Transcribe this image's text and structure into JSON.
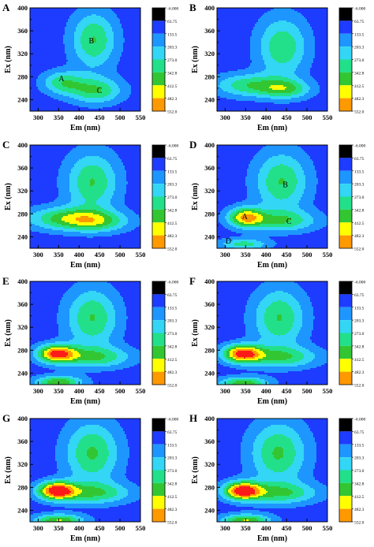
{
  "chart_data": {
    "type": "heatmap",
    "subtype": "filled-contour",
    "xlabel": "Em (nm)",
    "ylabel": "Ex (nm)",
    "xlim": [
      280,
      550
    ],
    "ylim": [
      220,
      400
    ],
    "xticks": [
      "300",
      "350",
      "400",
      "450",
      "500",
      "550"
    ],
    "yticks": [
      "240",
      "280",
      "320",
      "360",
      "400"
    ],
    "colorbar": {
      "levels": [
        "-6.000",
        "63.75",
        "133.5",
        "203.3",
        "273.0",
        "342.8",
        "412.5",
        "482.3",
        "552.0"
      ],
      "colors": [
        "#000000",
        "#1e3cff",
        "#1e96ff",
        "#33d6f5",
        "#22e08a",
        "#33c633",
        "#ffff00",
        "#ff9900",
        "#ff1a1a"
      ]
    },
    "panels": [
      {
        "letter": "A",
        "peaks": [
          {
            "em": 436,
            "ex": 344,
            "height": 3.6,
            "sx": 38,
            "sy": 34
          },
          {
            "em": 440,
            "ex": 256,
            "height": 3.6,
            "sx": 45,
            "sy": 16
          },
          {
            "em": 360,
            "ex": 270,
            "height": 3.1,
            "sx": 35,
            "sy": 14
          }
        ],
        "annotations": [
          {
            "text": "A",
            "em": 357,
            "ex": 278
          },
          {
            "text": "B",
            "em": 430,
            "ex": 344
          },
          {
            "text": "C",
            "em": 450,
            "ex": 257
          }
        ]
      },
      {
        "letter": "B",
        "peaks": [
          {
            "em": 440,
            "ex": 332,
            "height": 3.45,
            "sx": 42,
            "sy": 36
          },
          {
            "em": 360,
            "ex": 265,
            "height": 3.35,
            "sx": 60,
            "sy": 14
          },
          {
            "em": 450,
            "ex": 258,
            "height": 3.1,
            "sx": 42,
            "sy": 12
          }
        ],
        "annotations": []
      },
      {
        "letter": "C",
        "peaks": [
          {
            "em": 432,
            "ex": 335,
            "height": 3.6,
            "sx": 44,
            "sy": 36
          },
          {
            "em": 362,
            "ex": 272,
            "height": 3.55,
            "sx": 65,
            "sy": 14
          },
          {
            "em": 445,
            "ex": 267,
            "height": 3.2,
            "sx": 55,
            "sy": 13
          }
        ],
        "annotations": []
      },
      {
        "letter": "D",
        "peaks": [
          {
            "em": 438,
            "ex": 336,
            "height": 3.6,
            "sx": 45,
            "sy": 36
          },
          {
            "em": 350,
            "ex": 274,
            "height": 5.3,
            "sx": 30,
            "sy": 12
          },
          {
            "em": 440,
            "ex": 268,
            "height": 3.2,
            "sx": 60,
            "sy": 13
          },
          {
            "em": 345,
            "ex": 227,
            "height": 3.0,
            "sx": 42,
            "sy": 7
          }
        ],
        "annotations": [
          {
            "text": "A",
            "em": 348,
            "ex": 276
          },
          {
            "text": "B",
            "em": 447,
            "ex": 332
          },
          {
            "text": "C",
            "em": 456,
            "ex": 268
          },
          {
            "text": "D",
            "em": 308,
            "ex": 234
          }
        ]
      },
      {
        "letter": "E",
        "peaks": [
          {
            "em": 432,
            "ex": 336,
            "height": 3.6,
            "sx": 44,
            "sy": 36
          },
          {
            "em": 345,
            "ex": 274,
            "height": 6.5,
            "sx": 33,
            "sy": 11
          },
          {
            "em": 440,
            "ex": 268,
            "height": 3.3,
            "sx": 62,
            "sy": 13
          },
          {
            "em": 350,
            "ex": 224,
            "height": 4.5,
            "sx": 40,
            "sy": 8
          }
        ],
        "annotations": []
      },
      {
        "letter": "F",
        "peaks": [
          {
            "em": 432,
            "ex": 336,
            "height": 3.6,
            "sx": 44,
            "sy": 36
          },
          {
            "em": 342,
            "ex": 274,
            "height": 6.8,
            "sx": 33,
            "sy": 11
          },
          {
            "em": 440,
            "ex": 268,
            "height": 3.3,
            "sx": 62,
            "sy": 13
          },
          {
            "em": 345,
            "ex": 222,
            "height": 4.4,
            "sx": 42,
            "sy": 8
          }
        ],
        "annotations": []
      },
      {
        "letter": "G",
        "peaks": [
          {
            "em": 432,
            "ex": 340,
            "height": 3.7,
            "sx": 46,
            "sy": 38
          },
          {
            "em": 345,
            "ex": 274,
            "height": 7.3,
            "sx": 32,
            "sy": 11
          },
          {
            "em": 440,
            "ex": 270,
            "height": 3.3,
            "sx": 62,
            "sy": 13
          },
          {
            "em": 350,
            "ex": 222,
            "height": 4.6,
            "sx": 42,
            "sy": 8
          }
        ],
        "annotations": []
      },
      {
        "letter": "H",
        "peaks": [
          {
            "em": 430,
            "ex": 340,
            "height": 3.7,
            "sx": 48,
            "sy": 38
          },
          {
            "em": 342,
            "ex": 274,
            "height": 7.3,
            "sx": 32,
            "sy": 11
          },
          {
            "em": 440,
            "ex": 270,
            "height": 3.3,
            "sx": 62,
            "sy": 13
          },
          {
            "em": 350,
            "ex": 222,
            "height": 4.6,
            "sx": 42,
            "sy": 8
          }
        ],
        "annotations": []
      }
    ]
  }
}
